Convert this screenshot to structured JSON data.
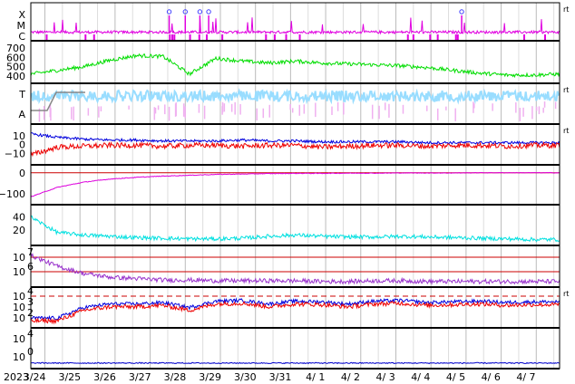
{
  "chart_data": [
    {
      "type": "line",
      "panel": "xray-flux",
      "y_ticks": [
        "X",
        "M",
        "C"
      ],
      "color": "#e000e0",
      "marker_color": "#4040ff",
      "right_label": "rt",
      "flare_markers_x": [
        "3/28 13:00",
        "3/29 00:00",
        "3/29 10:00",
        "3/29 16:00",
        "4/5 21:00"
      ]
    },
    {
      "type": "line",
      "panel": "solar-wind-speed",
      "y_ticks": [
        "700",
        "600",
        "500",
        "400"
      ],
      "ylim": [
        350,
        750
      ],
      "color": "#00dd00",
      "values": [
        420,
        460,
        500,
        570,
        620,
        610,
        420,
        590,
        560,
        540,
        560,
        540,
        530,
        520,
        510,
        490,
        460,
        430,
        410,
        410,
        420
      ]
    },
    {
      "type": "area",
      "panel": "imf-sector",
      "y_ticks": [
        "T",
        "A"
      ],
      "colors": [
        "#99ddff",
        "#f0b0f0"
      ],
      "right_label": "rt"
    },
    {
      "type": "line",
      "panel": "imf-bz",
      "y_ticks": [
        "10",
        "0",
        "−10"
      ],
      "ylim": [
        -20,
        20
      ],
      "series": [
        {
          "color": "#0000dd",
          "values": [
            12,
            8,
            6,
            5,
            5,
            4,
            4,
            4,
            5,
            4,
            4,
            3,
            3,
            3,
            3,
            2,
            2,
            2,
            2,
            2,
            2
          ]
        },
        {
          "color": "#ee0000",
          "values": [
            -12,
            -3,
            -2,
            -1,
            -1,
            -2,
            -1,
            -1,
            -2,
            -1,
            -1,
            -3,
            -2,
            -1,
            -1,
            -2,
            -1,
            -1,
            -2,
            -1,
            -1
          ]
        }
      ],
      "right_label": "rt"
    },
    {
      "type": "line",
      "panel": "dst",
      "y_ticks": [
        "0",
        "−100"
      ],
      "ylim": [
        -140,
        25
      ],
      "color": "#dd00dd",
      "values": [
        -115,
        -70,
        -45,
        -30,
        -22,
        -16,
        -12,
        -8,
        -6,
        -4,
        -3,
        -3,
        -2,
        -2,
        -1,
        -1,
        -1,
        0,
        0,
        0,
        0
      ]
    },
    {
      "type": "line",
      "panel": "kp",
      "y_ticks": [
        "40",
        "20"
      ],
      "ylim": [
        0,
        55
      ],
      "color": "#00e0e0",
      "values": [
        40,
        16,
        12,
        10,
        8,
        7,
        6,
        6,
        7,
        10,
        12,
        10,
        9,
        9,
        10,
        9,
        8,
        7,
        6,
        5,
        5
      ]
    },
    {
      "type": "line",
      "panel": "electron-flux",
      "y_ticks": [
        "10",
        "10"
      ],
      "y_ticks_exp": [
        "7",
        "6"
      ],
      "scale": "log",
      "color": "#9933cc",
      "line_color": "#cc0000"
    },
    {
      "type": "line",
      "panel": "proton-flux",
      "y_ticks": [
        "10",
        "10",
        "10"
      ],
      "y_ticks_exp": [
        "4",
        "3",
        "2"
      ],
      "scale": "log",
      "series": [
        {
          "color": "#0000dd"
        },
        {
          "color": "#ee0000"
        }
      ],
      "line_color": "#cc0000",
      "right_label": "rt"
    },
    {
      "type": "line",
      "panel": "neutron",
      "y_ticks": [
        "10",
        "10"
      ],
      "y_ticks_exp": [
        "4",
        "0"
      ],
      "scale": "log",
      "color": "#0000cc"
    }
  ],
  "x_axis": {
    "year": "2023",
    "labels": [
      "3/24",
      "3/25",
      "3/26",
      "3/27",
      "3/28",
      "3/29",
      "3/30",
      "3/31",
      "4/ 1",
      "4/ 2",
      "4/ 3",
      "4/ 4",
      "4/ 5",
      "4/ 6",
      "4/ 7"
    ]
  }
}
